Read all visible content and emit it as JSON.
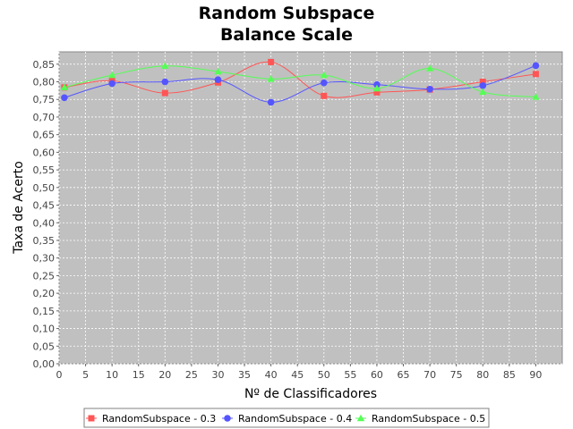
{
  "chart_data": {
    "type": "line",
    "title": "Random Subspace",
    "subtitle": "Balance Scale",
    "xlabel": "Nº de Classificadores",
    "ylabel": "Taxa de Acerto",
    "xlim": [
      0,
      95
    ],
    "ylim": [
      0,
      0.885
    ],
    "x_ticks": [
      "0",
      "5",
      "10",
      "15",
      "20",
      "25",
      "30",
      "35",
      "40",
      "45",
      "50",
      "55",
      "60",
      "65",
      "70",
      "75",
      "80",
      "85",
      "90"
    ],
    "y_ticks": [
      "0,00",
      "0,05",
      "0,10",
      "0,15",
      "0,20",
      "0,25",
      "0,30",
      "0,35",
      "0,40",
      "0,45",
      "0,50",
      "0,55",
      "0,60",
      "0,65",
      "0,70",
      "0,75",
      "0,80",
      "0,85"
    ],
    "grid": true,
    "legend_position": "bottom",
    "background_color": "#c0c0c0",
    "x": [
      1,
      10,
      20,
      30,
      40,
      50,
      60,
      70,
      80,
      90
    ],
    "series": [
      {
        "name": "RandomSubspace - 0.3",
        "color": "#ff5555",
        "marker": "square",
        "values": [
          0.784,
          0.803,
          0.768,
          0.798,
          0.856,
          0.76,
          0.77,
          0.778,
          0.8,
          0.822
        ]
      },
      {
        "name": "RandomSubspace - 0.4",
        "color": "#5555ff",
        "marker": "circle",
        "values": [
          0.755,
          0.795,
          0.8,
          0.806,
          0.742,
          0.797,
          0.792,
          0.779,
          0.789,
          0.846
        ]
      },
      {
        "name": "RandomSubspace - 0.5",
        "color": "#55ff55",
        "marker": "triangle",
        "values": [
          0.784,
          0.819,
          0.845,
          0.829,
          0.808,
          0.819,
          0.781,
          0.838,
          0.771,
          0.757
        ]
      }
    ]
  }
}
